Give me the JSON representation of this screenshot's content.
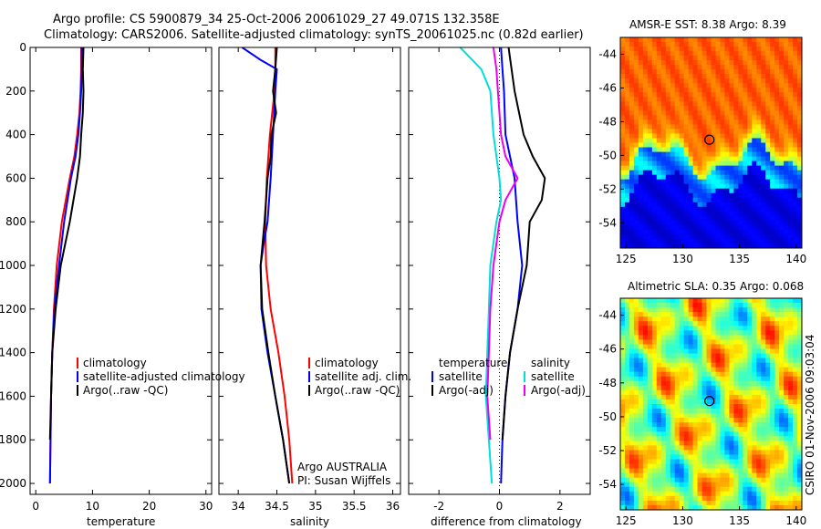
{
  "header": {
    "line1": "Argo profile: CS 5900879_34 25-Oct-2006 20061029_27 49.071S 132.358E",
    "line2": "Climatology: CARS2006. Satellite-adjusted climatology: synTS_20061025.nc (0.82d earlier)"
  },
  "chart_data": [
    {
      "id": "temperature",
      "type": "line",
      "xlabel": "temperature",
      "xlim": [
        -1,
        31
      ],
      "ylim": [
        0,
        2050
      ],
      "y_reversed": true,
      "xticks": [
        0,
        10,
        20,
        30
      ],
      "yticks": [
        0,
        200,
        400,
        600,
        800,
        1000,
        1200,
        1400,
        1600,
        1800,
        2000
      ],
      "series": [
        {
          "name": "climatology",
          "color": "#ff0000",
          "x": [
            8.0,
            8.0,
            7.9,
            7.7,
            7.3,
            6.8,
            6.0,
            4.6,
            3.7,
            3.2,
            2.9,
            2.7,
            2.6,
            2.5
          ],
          "y": [
            0,
            100,
            200,
            300,
            400,
            500,
            600,
            800,
            1000,
            1200,
            1400,
            1600,
            1800,
            2000
          ]
        },
        {
          "name": "satellite-adjusted climatology",
          "color": "#0000ff",
          "x": [
            8.1,
            8.1,
            8.0,
            7.8,
            7.5,
            7.0,
            6.2,
            5.0,
            4.1,
            3.3,
            2.9,
            2.7,
            2.6,
            2.5
          ],
          "y": [
            0,
            100,
            200,
            300,
            400,
            500,
            600,
            800,
            1000,
            1200,
            1400,
            1600,
            1800,
            2000
          ]
        },
        {
          "name": "Argo(..raw -QC)",
          "color": "#000000",
          "x": [
            8.4,
            8.3,
            8.4,
            8.3,
            8.0,
            7.8,
            7.3,
            6.0,
            4.4,
            3.5,
            2.9,
            2.7,
            2.5
          ],
          "y": [
            0,
            100,
            200,
            300,
            400,
            500,
            600,
            800,
            1000,
            1200,
            1400,
            1600,
            1800
          ]
        }
      ],
      "legend": {
        "placement": "lower-right",
        "labels": [
          "climatology",
          "satellite-adjusted climatology",
          "Argo(..raw -QC)"
        ]
      }
    },
    {
      "id": "salinity",
      "type": "line",
      "xlabel": "salinity",
      "xlim": [
        33.75,
        36.1
      ],
      "ylim": [
        0,
        2050
      ],
      "y_reversed": true,
      "xticks": [
        34,
        34.5,
        35,
        35.5,
        36
      ],
      "series": [
        {
          "name": "climatology",
          "color": "#ff0000",
          "x": [
            34.48,
            34.48,
            34.47,
            34.44,
            34.41,
            34.39,
            34.37,
            34.35,
            34.36,
            34.42,
            34.52,
            34.6,
            34.66,
            34.7
          ],
          "y": [
            0,
            100,
            200,
            300,
            400,
            500,
            600,
            800,
            1000,
            1200,
            1400,
            1600,
            1800,
            2000
          ]
        },
        {
          "name": "satellite adj. clim.",
          "color": "#0000ff",
          "x": [
            34.05,
            34.3,
            34.5,
            34.48,
            34.45,
            34.42,
            34.38,
            34.33,
            34.29,
            34.3,
            34.38,
            34.48,
            34.58,
            34.66
          ],
          "y": [
            0,
            60,
            100,
            200,
            400,
            600,
            800,
            900,
            1000,
            1200,
            1400,
            1600,
            1800,
            2000
          ]
        },
        {
          "name": "Argo(..raw -QC)",
          "color": "#000000",
          "x": [
            34.5,
            34.48,
            34.45,
            34.49,
            34.43,
            34.42,
            34.38,
            34.34,
            34.29,
            34.31,
            34.39,
            34.48,
            34.58,
            34.66
          ],
          "y": [
            0,
            100,
            200,
            300,
            400,
            500,
            600,
            800,
            1000,
            1200,
            1400,
            1600,
            1800,
            2000
          ]
        }
      ],
      "legend": {
        "placement": "lower-right",
        "labels": [
          "climatology",
          "satellite adj. clim.",
          "Argo(..raw -QC)"
        ]
      },
      "annotations": [
        "Argo AUSTRALIA",
        "PI: Susan Wijffels"
      ]
    },
    {
      "id": "difference",
      "type": "line",
      "xlabel": "difference from climatology",
      "xlim": [
        -3,
        3
      ],
      "ylim": [
        0,
        2050
      ],
      "y_reversed": true,
      "xticks": [
        -2,
        0,
        2
      ],
      "zero_line": true,
      "series": [
        {
          "name": "temperature satellite",
          "color": "#0000ff",
          "x": [
            0.05,
            0.1,
            0.15,
            0.2,
            0.35,
            0.5,
            0.55,
            0.6,
            0.75,
            0.6,
            0.35,
            0.2,
            0.1,
            0.05
          ],
          "y": [
            0,
            100,
            200,
            400,
            500,
            600,
            700,
            800,
            1000,
            1200,
            1400,
            1600,
            1800,
            2000
          ]
        },
        {
          "name": "temperature Argo(-adj)",
          "color": "#000000",
          "x": [
            0.3,
            0.4,
            0.5,
            0.8,
            1.1,
            1.5,
            1.4,
            1.0,
            0.9,
            0.6,
            0.35,
            0.2,
            0.1
          ],
          "y": [
            0,
            100,
            200,
            400,
            500,
            600,
            700,
            800,
            1000,
            1200,
            1400,
            1600,
            1800
          ]
        },
        {
          "name": "salinity satellite",
          "color": "#00dddd",
          "x": [
            -1.3,
            -0.6,
            -0.3,
            -0.2,
            -0.1,
            0.0,
            0.05,
            -0.1,
            -0.3,
            -0.35,
            -0.4,
            -0.45,
            -0.35,
            -0.25
          ],
          "y": [
            0,
            100,
            200,
            400,
            500,
            600,
            700,
            800,
            1000,
            1200,
            1400,
            1600,
            1800,
            2000
          ]
        },
        {
          "name": "salinity Argo(-adj)",
          "color": "#ee00ee",
          "x": [
            -0.2,
            -0.1,
            -0.05,
            0.05,
            0.2,
            0.6,
            0.2,
            0.0,
            -0.2,
            -0.3,
            -0.35,
            -0.4,
            -0.3
          ],
          "y": [
            0,
            100,
            200,
            400,
            500,
            600,
            700,
            800,
            1000,
            1200,
            1400,
            1600,
            1800
          ]
        }
      ],
      "legend": {
        "placement": "lower-center",
        "temperature_heading": "temperature",
        "salinity_heading": "salinity",
        "labels": [
          "satellite",
          "Argo(-adj)",
          "satellite",
          "Argo(-adj)"
        ]
      }
    },
    {
      "id": "sst_map",
      "type": "heatmap",
      "title": "AMSR-E SST: 8.38 Argo: 8.39",
      "xlim": [
        124.5,
        140.5
      ],
      "ylim": [
        -55.5,
        -43
      ],
      "xticks": [
        125,
        130,
        135,
        140
      ],
      "yticks": [
        -44,
        -46,
        -48,
        -50,
        -52,
        -54
      ],
      "marker": {
        "lon": 132.358,
        "lat": -49.071
      }
    },
    {
      "id": "sla_map",
      "type": "heatmap",
      "title": "Altimetric SLA: 0.35 Argo: 0.068",
      "xlim": [
        124.5,
        140.5
      ],
      "ylim": [
        -55.5,
        -43
      ],
      "xticks": [
        125,
        130,
        135,
        140
      ],
      "yticks": [
        -44,
        -46,
        -48,
        -50,
        -52,
        -54
      ],
      "marker": {
        "lon": 132.358,
        "lat": -49.071
      },
      "side_label": "CSIRO 01-Nov-2006 09:03:04"
    }
  ]
}
